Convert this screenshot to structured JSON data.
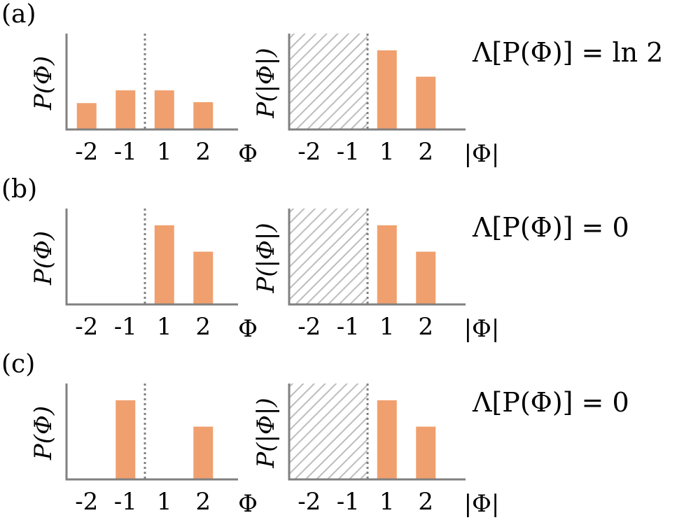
{
  "figure": {
    "bar_color": "#F0A06E",
    "axis_color": "#808080",
    "divider_color": "#808080",
    "hatch_color": "#BDBDBD"
  },
  "chart_data": [
    {
      "panel": "(a)",
      "type": "bar",
      "categories": [
        "-2",
        "-1",
        "1",
        "2"
      ],
      "values": [
        0.29,
        0.43,
        0.43,
        0.3
      ],
      "ylabel": "P(Φ)",
      "xlabel": "Φ",
      "ylim": [
        0,
        1
      ],
      "divider_between": [
        "-1",
        "1"
      ],
      "grid": false
    },
    {
      "panel": "(a)",
      "type": "bar",
      "categories": [
        "-2",
        "-1",
        "1",
        "2"
      ],
      "values": [
        0,
        0,
        0.87,
        0.58
      ],
      "ylabel": "P(|Φ|)",
      "xlabel": "|Φ|",
      "ylim": [
        0,
        1
      ],
      "hatched_region": [
        "-2",
        "-1"
      ],
      "divider_between": [
        "-1",
        "1"
      ],
      "annotation": "Λ[P(Φ)] = ln 2",
      "grid": false
    },
    {
      "panel": "(b)",
      "type": "bar",
      "categories": [
        "-2",
        "-1",
        "1",
        "2"
      ],
      "values": [
        0,
        0,
        0.87,
        0.58
      ],
      "ylabel": "P(Φ)",
      "xlabel": "Φ",
      "ylim": [
        0,
        1
      ],
      "divider_between": [
        "-1",
        "1"
      ],
      "grid": false
    },
    {
      "panel": "(b)",
      "type": "bar",
      "categories": [
        "-2",
        "-1",
        "1",
        "2"
      ],
      "values": [
        0,
        0,
        0.87,
        0.58
      ],
      "ylabel": "P(|Φ|)",
      "xlabel": "|Φ|",
      "ylim": [
        0,
        1
      ],
      "hatched_region": [
        "-2",
        "-1"
      ],
      "divider_between": [
        "-1",
        "1"
      ],
      "annotation": "Λ[P(Φ)] = 0",
      "grid": false
    },
    {
      "panel": "(c)",
      "type": "bar",
      "categories": [
        "-2",
        "-1",
        "1",
        "2"
      ],
      "values": [
        0,
        0.87,
        0,
        0.58
      ],
      "ylabel": "P(Φ)",
      "xlabel": "Φ",
      "ylim": [
        0,
        1
      ],
      "divider_between": [
        "-1",
        "1"
      ],
      "grid": false
    },
    {
      "panel": "(c)",
      "type": "bar",
      "categories": [
        "-2",
        "-1",
        "1",
        "2"
      ],
      "values": [
        0,
        0,
        0.87,
        0.58
      ],
      "ylabel": "P(|Φ|)",
      "xlabel": "|Φ|",
      "ylim": [
        0,
        1
      ],
      "hatched_region": [
        "-2",
        "-1"
      ],
      "divider_between": [
        "-1",
        "1"
      ],
      "annotation": "Λ[P(Φ)] = 0",
      "grid": false
    }
  ]
}
